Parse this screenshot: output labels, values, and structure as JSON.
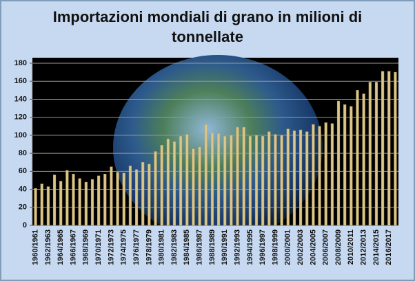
{
  "chart_data": {
    "type": "bar",
    "title": "Importazioni mondiali di grano in milioni di tonnellate",
    "categories": [
      "1960/1961",
      null,
      "1962/1963",
      null,
      "1964/1965",
      null,
      "1966/1967",
      null,
      "1968/1969",
      null,
      "1970/1971",
      null,
      "1972/1973",
      null,
      "1974/1975",
      null,
      "1976/1977",
      null,
      "1978/1979",
      null,
      "1980/1981",
      null,
      "1982/1983",
      null,
      "1984/1985",
      null,
      "1986/1987",
      null,
      "1988/1989",
      null,
      "1990/1991",
      null,
      "1992/1993",
      null,
      "1994/1995",
      null,
      "1996/1997",
      null,
      "1998/1999",
      null,
      "2000/2001",
      null,
      "2002/2003",
      null,
      "2004/2005",
      null,
      "2006/2007",
      null,
      "2008/2009",
      null,
      "2010/2011",
      null,
      "2012/2013",
      null,
      "2014/2015",
      null,
      "2016/2017",
      null
    ],
    "values": [
      41,
      46,
      43,
      56,
      49,
      61,
      57,
      52,
      48,
      51,
      55,
      57,
      65,
      59,
      58,
      66,
      62,
      70,
      68,
      82,
      89,
      96,
      93,
      99,
      101,
      85,
      87,
      112,
      103,
      102,
      99,
      100,
      109,
      109,
      99,
      100,
      99,
      104,
      101,
      100,
      107,
      105,
      106,
      104,
      112,
      110,
      114,
      113,
      138,
      134,
      132,
      150,
      146,
      159,
      159,
      171,
      171,
      170
    ],
    "color": "#dcc68a",
    "ylim": [
      0,
      180
    ],
    "yticks": [
      0,
      20,
      40,
      60,
      80,
      100,
      120,
      140,
      160,
      180
    ],
    "grid": true
  }
}
